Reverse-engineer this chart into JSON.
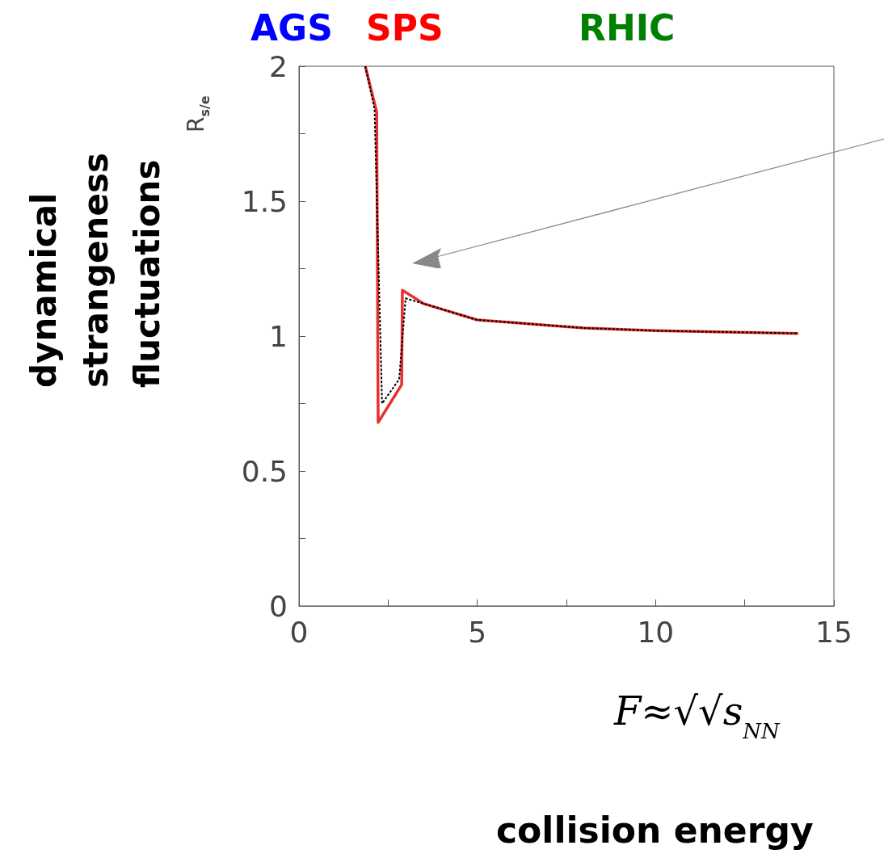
{
  "chart_data": {
    "type": "line",
    "xlabel": "F≈√√s$_{NN}$",
    "ylabel": "R$_{s/e}$",
    "annotations": [
      "AGS",
      "SPS",
      "RHIC",
      "dynamical strangeness fluctuations",
      "collision energy"
    ],
    "xlim": [
      0,
      15
    ],
    "ylim": [
      0,
      2
    ],
    "xticks": [
      0,
      {
        "value": 2.5,
        "label": null
      },
      5,
      {
        "value": 7.5,
        "label": null
      },
      10,
      {
        "value": 12.5,
        "label": null
      },
      15
    ],
    "yticks": [
      0,
      {
        "value": 0.25,
        "label": null
      },
      0.5,
      {
        "value": 0.75,
        "label": null
      },
      1,
      {
        "value": 1.25,
        "label": null
      },
      1.5,
      {
        "value": 1.75,
        "label": null
      },
      2
    ],
    "grid": false,
    "marker": "none",
    "series": [
      {
        "color": "#e8302f",
        "line_style": "solid",
        "x": [
          1.86,
          2.18,
          2.22,
          2.88,
          2.9,
          3.5,
          4,
          5,
          6,
          7,
          8,
          10,
          12,
          14
        ],
        "values": [
          2,
          1.83,
          0.68,
          0.82,
          1.17,
          1.12,
          1.1,
          1.06,
          1.05,
          1.04,
          1.03,
          1.02,
          1.015,
          1.01
        ]
      },
      {
        "color": "#000000",
        "line_style": "dotted",
        "x": [
          1.86,
          2.12,
          2.33,
          2.81,
          2.99,
          3.5,
          4,
          5,
          6,
          7,
          8,
          10,
          12,
          14
        ],
        "values": [
          2,
          1.84,
          0.75,
          0.84,
          1.14,
          1.12,
          1.1,
          1.06,
          1.05,
          1.04,
          1.03,
          1.02,
          1.015,
          1.01
        ]
      }
    ]
  }
}
